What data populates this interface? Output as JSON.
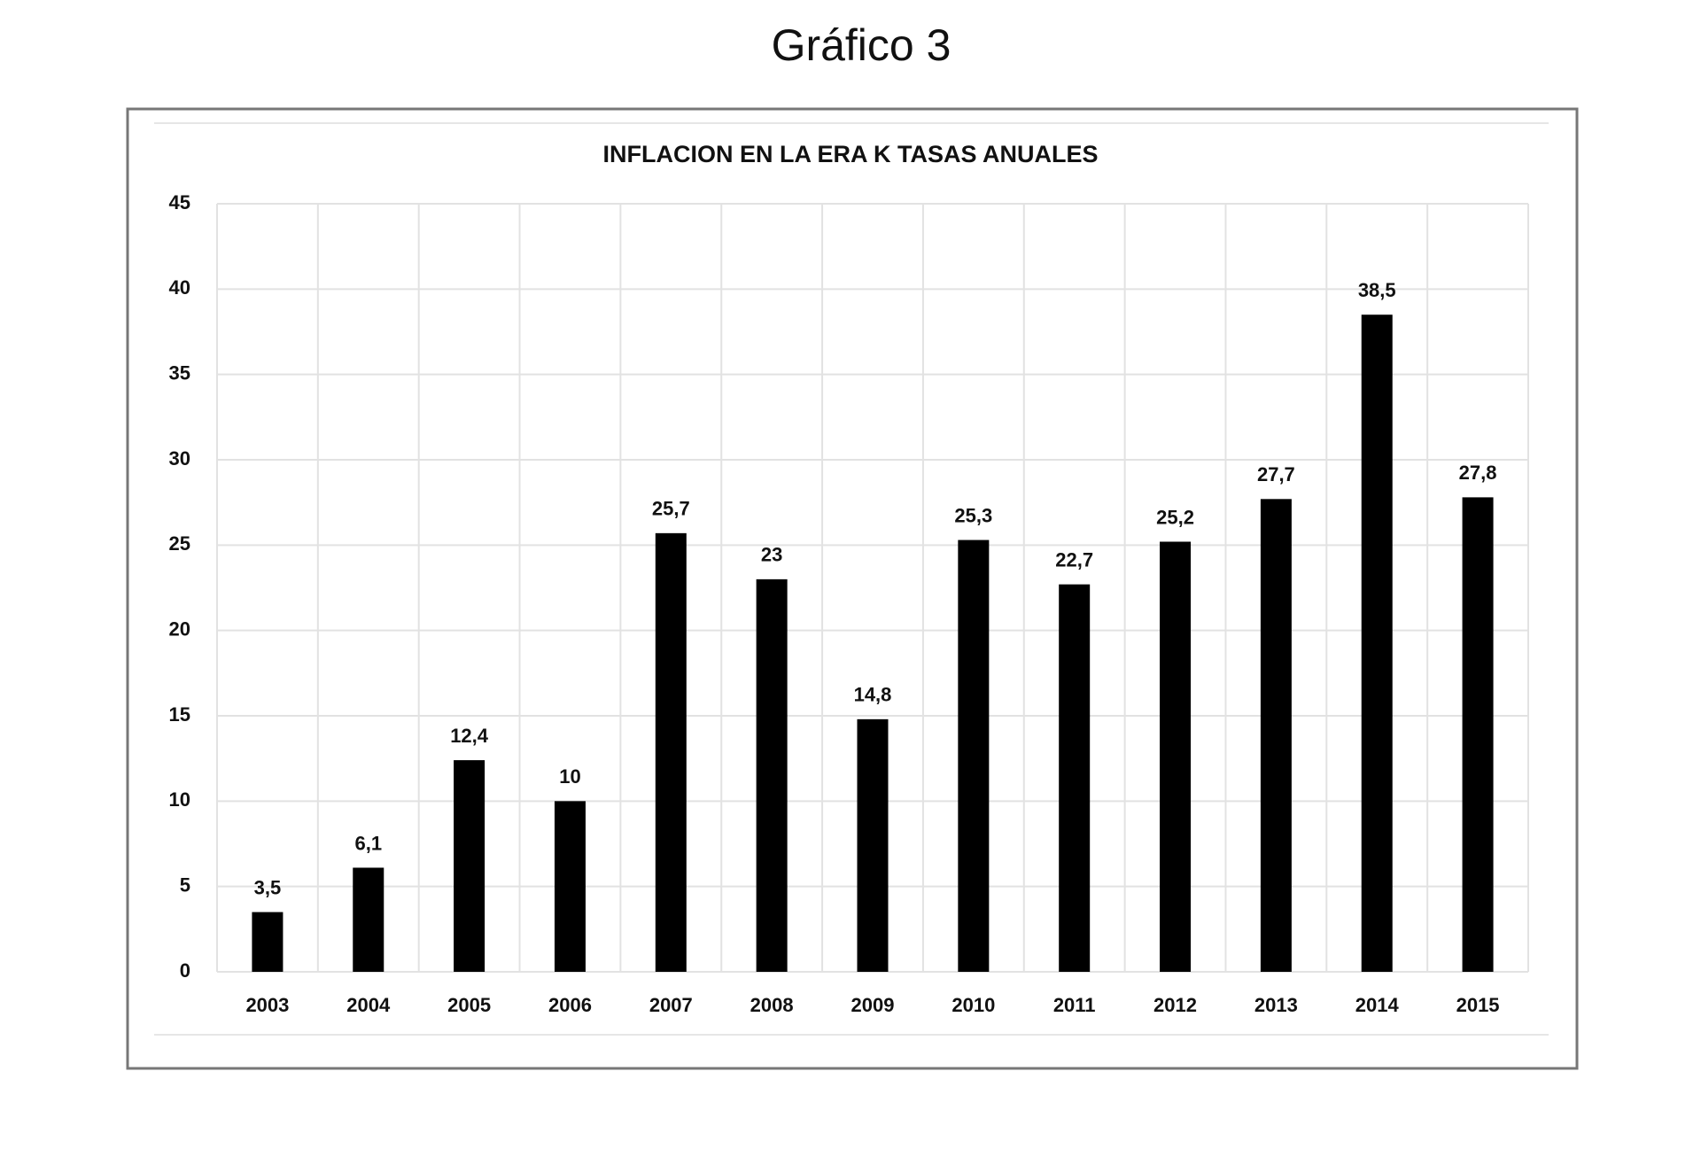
{
  "chart_data": {
    "type": "bar",
    "title": "Gráfico 3",
    "subtitle": "INFLACION  EN LA ERA  K TASAS  ANUALES",
    "categories": [
      "2003",
      "2004",
      "2005",
      "2006",
      "2007",
      "2008",
      "2009",
      "2010",
      "2011",
      "2012",
      "2013",
      "2014",
      "2015"
    ],
    "values": [
      3.5,
      6.1,
      12.4,
      10,
      25.7,
      23,
      14.8,
      25.3,
      22.7,
      25.2,
      27.7,
      38.5,
      27.8
    ],
    "value_labels": [
      "3,5",
      "6,1",
      "12,4",
      "10",
      "25,7",
      "23",
      "14,8",
      "25,3",
      "22,7",
      "25,2",
      "27,7",
      "38,5",
      "27,8"
    ],
    "color": "#000000",
    "ylim": [
      0,
      45
    ],
    "yticks": [
      0,
      5,
      10,
      15,
      20,
      25,
      30,
      35,
      40,
      45
    ],
    "grid": true
  }
}
